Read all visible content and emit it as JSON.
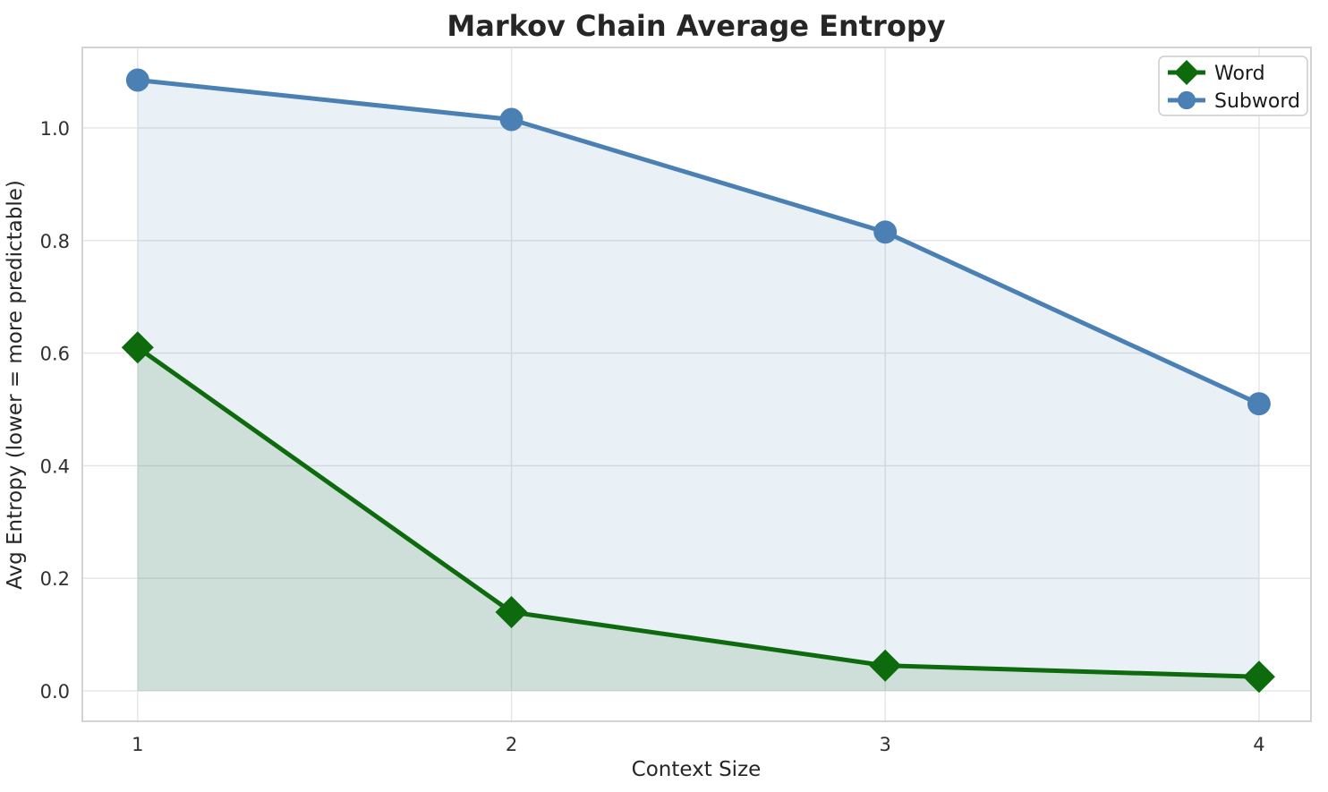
{
  "chart_data": {
    "type": "line",
    "title": "Markov Chain Average Entropy",
    "xlabel": "Context Size",
    "ylabel": "Avg Entropy (lower = more predictable)",
    "x": [
      1,
      2,
      3,
      4
    ],
    "series": [
      {
        "name": "Word",
        "values": [
          0.61,
          0.14,
          0.045,
          0.025
        ],
        "color": "#0d6b0d",
        "marker": "diamond",
        "fill_to_zero": true
      },
      {
        "name": "Subword",
        "values": [
          1.085,
          1.015,
          0.815,
          0.51
        ],
        "color": "#4a80b4",
        "marker": "circle",
        "fill_to_zero": true
      }
    ],
    "xticks": [
      1,
      2,
      3,
      4
    ],
    "xtick_labels": [
      "1",
      "2",
      "3",
      "4"
    ],
    "yticks": [
      0.0,
      0.2,
      0.4,
      0.6,
      0.8,
      1.0
    ],
    "ytick_labels": [
      "0.0",
      "0.2",
      "0.4",
      "0.6",
      "0.8",
      "1.0"
    ],
    "xlim": [
      0.852,
      4.139
    ],
    "ylim": [
      -0.054,
      1.143
    ],
    "grid": true,
    "fill_opacity": 0.12,
    "line_width": 5,
    "legend_position": "upper right",
    "colors": {
      "word_line": "#0d6b0d",
      "subword_line": "#4a80b4",
      "grid": "#e4e4e4",
      "axes_border": "#d3d3d3",
      "text": "#262626"
    }
  }
}
